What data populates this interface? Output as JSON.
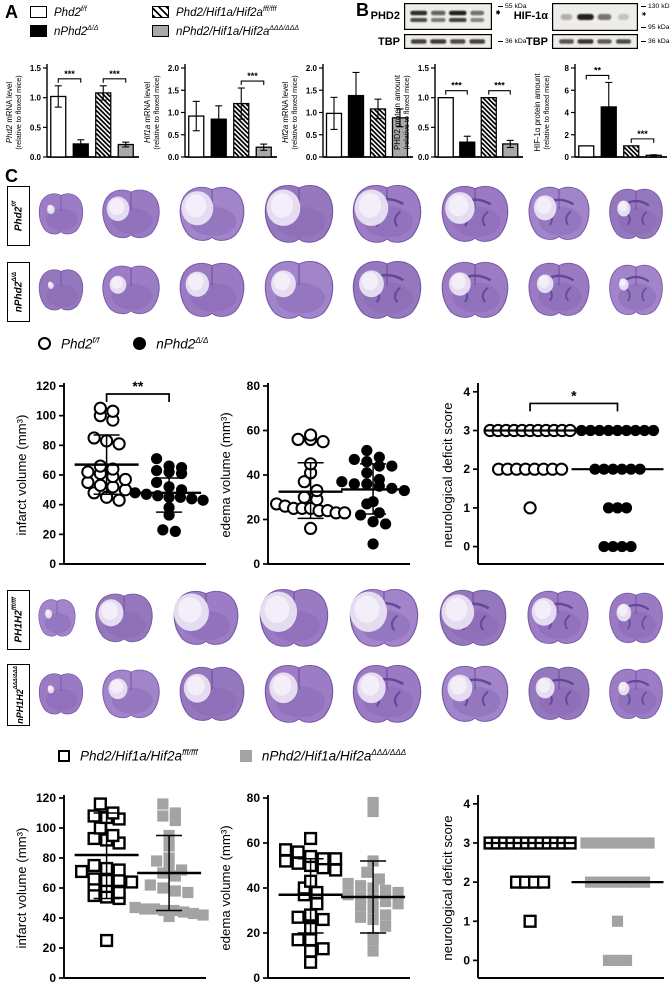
{
  "panels": {
    "a": "A",
    "b": "B",
    "c": "C"
  },
  "panel_a": {
    "legend": [
      {
        "name": "Phd2",
        "sup": "f/f",
        "swatch": "white"
      },
      {
        "name": "nPhd2",
        "sup": "Δ/Δ",
        "swatch": "black"
      },
      {
        "name": "Phd2/Hif1a/Hif2a",
        "sup": "fff/fff",
        "swatch": "hatched"
      },
      {
        "name": "nPhd2/Hif1a/Hif2a",
        "sup": "ΔΔΔ/ΔΔΔ",
        "swatch": "gray"
      }
    ]
  },
  "panel_b": {
    "blots": [
      {
        "protein": "PHD2",
        "markers": [
          "55 kDa"
        ],
        "note": "**",
        "doublet": true,
        "lanes": [
          0.9,
          0.55,
          1.0,
          0.45
        ]
      },
      {
        "protein": "TBP",
        "markers": [
          "36 kDa"
        ],
        "lanes": [
          0.75,
          0.8,
          0.7,
          0.75
        ]
      },
      {
        "protein": "HIF-1α",
        "markers": [
          "130 kDa",
          "95 kDa"
        ],
        "note": "*",
        "lanes": [
          0.18,
          0.95,
          0.5,
          0.08
        ]
      },
      {
        "protein": "TBP",
        "markers": [
          "36 kDa"
        ],
        "lanes": [
          0.65,
          0.85,
          0.6,
          0.7
        ]
      }
    ]
  },
  "panel_c": {
    "brain_rows": [
      {
        "name": "Phd2",
        "sup": "f/f",
        "sections": 8
      },
      {
        "name": "nPhd2",
        "sup": "Δ/Δ",
        "sections": 8
      },
      {
        "name": "PH1H2",
        "sup": "fff/fff",
        "sections": 8
      },
      {
        "name": "nPH1H2",
        "sup": "ΔΔΔ/ΔΔΔ",
        "sections": 8
      }
    ],
    "legend1": [
      {
        "name": "Phd2",
        "sup": "f/f",
        "marker": "circle-open"
      },
      {
        "name": "nPhd2",
        "sup": "Δ/Δ",
        "marker": "circle-filled"
      }
    ],
    "legend2": [
      {
        "name": "Phd2/Hif1a/Hif2a",
        "sup": "fff/fff",
        "marker": "square-open"
      },
      {
        "name": "nPhd2/Hif1a/Hif2a",
        "sup": "ΔΔΔ/ΔΔΔ",
        "marker": "square-gray"
      }
    ]
  },
  "chart_data": [
    {
      "id": "a-phd2-mrna",
      "type": "bar",
      "ylabel_italic": "Phd2",
      "ylabel_rest": " mRNA level",
      "ylabel_line2": "(relative to floxed mice)",
      "ylim": [
        0,
        1.5
      ],
      "yticks": [
        0,
        0.5,
        1.0,
        1.5
      ],
      "tick_decimals": 1,
      "categories": [
        "Phd2 f/f",
        "nPhd2 Δ/Δ",
        "Phd2/Hif1a/Hif2a fff/fff",
        "nPhd2/Hif1a/Hif2a ΔΔΔ/ΔΔΔ"
      ],
      "values": [
        1.02,
        0.22,
        1.08,
        0.21
      ],
      "errors": [
        0.18,
        0.07,
        0.12,
        0.04
      ],
      "significance": [
        {
          "from": 0,
          "to": 1,
          "label": "***"
        },
        {
          "from": 2,
          "to": 3,
          "label": "***"
        }
      ]
    },
    {
      "id": "a-hif1a-mrna",
      "type": "bar",
      "ylabel_italic": "Hif1a",
      "ylabel_rest": " mRNA level",
      "ylabel_line2": "(relative to floxed mice)",
      "ylim": [
        0,
        2.0
      ],
      "yticks": [
        0,
        0.5,
        1.0,
        1.5,
        2.0
      ],
      "tick_decimals": 1,
      "categories": [
        "Phd2 f/f",
        "nPhd2 Δ/Δ",
        "Phd2/Hif1a/Hif2a fff/fff",
        "nPhd2/Hif1a/Hif2a ΔΔΔ/ΔΔΔ"
      ],
      "values": [
        0.92,
        0.85,
        1.2,
        0.22
      ],
      "errors": [
        0.33,
        0.3,
        0.35,
        0.07
      ],
      "significance": [
        {
          "from": 2,
          "to": 3,
          "label": "***"
        }
      ]
    },
    {
      "id": "a-hif2a-mrna",
      "type": "bar",
      "ylabel_italic": "Hif2a",
      "ylabel_rest": " mRNA level",
      "ylabel_line2": "(relative to floxed mice)",
      "ylim": [
        0,
        2.0
      ],
      "yticks": [
        0,
        0.5,
        1.0,
        1.5,
        2.0
      ],
      "tick_decimals": 1,
      "categories": [
        "Phd2 f/f",
        "nPhd2 Δ/Δ",
        "Phd2/Hif1a/Hif2a fff/fff",
        "nPhd2/Hif1a/Hif2a ΔΔΔ/ΔΔΔ"
      ],
      "values": [
        0.98,
        1.38,
        1.08,
        0.88
      ],
      "errors": [
        0.36,
        0.52,
        0.22,
        0.2
      ],
      "significance": []
    },
    {
      "id": "b-phd2-protein",
      "type": "bar",
      "ylabel_italic": "",
      "ylabel_rest": "PHD2 protein amount",
      "ylabel_line2": "(relative to floxed mice)",
      "ylim": [
        0,
        1.5
      ],
      "yticks": [
        0,
        0.5,
        1.0,
        1.5
      ],
      "tick_decimals": 1,
      "categories": [
        "Phd2 f/f",
        "nPhd2 Δ/Δ",
        "Phd2/Hif1a/Hif2a fff/fff",
        "nPhd2/Hif1a/Hif2a ΔΔΔ/ΔΔΔ"
      ],
      "values": [
        1.0,
        0.25,
        1.0,
        0.22
      ],
      "errors": [
        0,
        0.1,
        0,
        0.06
      ],
      "significance": [
        {
          "from": 0,
          "to": 1,
          "label": "***"
        },
        {
          "from": 2,
          "to": 3,
          "label": "***"
        }
      ]
    },
    {
      "id": "b-hif1a-protein",
      "type": "bar",
      "ylabel_italic": "",
      "ylabel_rest": "HIF-1α protein amount",
      "ylabel_line2": "(relative to floxed mice)",
      "ylim": [
        0,
        8
      ],
      "yticks": [
        0,
        2,
        4,
        6,
        8
      ],
      "tick_decimals": 0,
      "categories": [
        "Phd2 f/f",
        "nPhd2 Δ/Δ",
        "Phd2/Hif1a/Hif2a fff/fff",
        "nPhd2/Hif1a/Hif2a ΔΔΔ/ΔΔΔ"
      ],
      "values": [
        1.0,
        4.5,
        1.0,
        0.15
      ],
      "errors": [
        0,
        2.2,
        0,
        0.05
      ],
      "significance": [
        {
          "from": 0,
          "to": 1,
          "label": "**"
        },
        {
          "from": 2,
          "to": 3,
          "label": "***"
        }
      ]
    },
    {
      "id": "c1-infarct",
      "type": "scatter",
      "ylabel": "infarct volume (mm³)",
      "ylim": [
        0,
        120
      ],
      "yticks": [
        0,
        20,
        40,
        60,
        80,
        100,
        120
      ],
      "sig": "**",
      "series": [
        {
          "name": "Phd2 f/f",
          "marker": "circle-open",
          "mean": 67,
          "err_lo": 47,
          "err_hi": 87,
          "values": [
            105,
            103,
            100,
            97,
            85,
            83,
            81,
            66,
            64,
            62,
            61,
            59,
            57,
            55,
            53,
            52,
            50,
            48,
            45,
            43
          ]
        },
        {
          "name": "nPhd2 Δ/Δ",
          "marker": "circle-filled",
          "mean": 48,
          "err_lo": 35,
          "err_hi": 58,
          "values": [
            71,
            66,
            65,
            63,
            62,
            61,
            55,
            52,
            50,
            48,
            47,
            46,
            45,
            45,
            44,
            43,
            38,
            33,
            23,
            22
          ]
        }
      ]
    },
    {
      "id": "c1-edema",
      "type": "scatter",
      "ylabel": "edema volume (mm³)",
      "ylim": [
        0,
        80
      ],
      "yticks": [
        0,
        20,
        40,
        60,
        80
      ],
      "sig": null,
      "series": [
        {
          "name": "Phd2 f/f",
          "marker": "circle-open",
          "mean": 32.5,
          "err_lo": 20.5,
          "err_hi": 45.5,
          "values": [
            58,
            56,
            56,
            55,
            45,
            41,
            37,
            33,
            30,
            29,
            27,
            26,
            25,
            25,
            25,
            24,
            24,
            23,
            23,
            16
          ]
        },
        {
          "name": "nPhd2 Δ/Δ",
          "marker": "circle-filled",
          "mean": 33.5,
          "err_lo": 22.5,
          "err_hi": 45,
          "values": [
            51,
            48,
            47,
            46,
            44,
            44,
            41,
            38,
            37,
            36,
            36,
            35,
            34,
            33,
            28,
            27,
            23,
            22,
            19,
            18,
            9
          ]
        }
      ]
    },
    {
      "id": "c1-neuro",
      "type": "scatter",
      "discrete": true,
      "ylabel": "neurological deficit score",
      "ylim": [
        -0.45,
        4.15
      ],
      "yticks": [
        0,
        1,
        2,
        3,
        4
      ],
      "sig": "*",
      "series": [
        {
          "name": "Phd2 f/f",
          "marker": "circle-open",
          "median": 3,
          "values": [
            3,
            3,
            3,
            3,
            3,
            3,
            3,
            3,
            3,
            3,
            3,
            2,
            2,
            2,
            2,
            2,
            2,
            2,
            2,
            1
          ]
        },
        {
          "name": "nPhd2 Δ/Δ",
          "marker": "circle-filled",
          "median": 2,
          "values": [
            3,
            3,
            3,
            3,
            3,
            3,
            3,
            3,
            3,
            2,
            2,
            2,
            2,
            2,
            2,
            1,
            1,
            1,
            0,
            0,
            0,
            0
          ]
        }
      ]
    },
    {
      "id": "c2-infarct",
      "type": "scatter",
      "ylabel": "infarct volume (mm³)",
      "ylim": [
        0,
        120
      ],
      "yticks": [
        0,
        20,
        40,
        60,
        80,
        100,
        120
      ],
      "sig": null,
      "series": [
        {
          "name": "Phd2/Hif1a/Hif2a fff/fff",
          "marker": "square-open",
          "mean": 82,
          "err_lo": 53,
          "err_hi": 110,
          "values": [
            116,
            110,
            108,
            107,
            106,
            100,
            95,
            93,
            92,
            90,
            75,
            73,
            72,
            71,
            66,
            65,
            65,
            64,
            62,
            61,
            57,
            55,
            54,
            53,
            25
          ]
        },
        {
          "name": "nPhd2/Hif1a/Hif2a ΔΔΔ/ΔΔΔ",
          "marker": "square-gray",
          "mean": 70,
          "err_lo": 45,
          "err_hi": 95,
          "values": [
            116,
            110,
            108,
            105,
            95,
            88,
            80,
            78,
            75,
            72,
            70,
            68,
            62,
            60,
            58,
            57,
            47,
            46,
            46,
            45,
            45,
            44,
            43,
            42,
            41
          ]
        }
      ]
    },
    {
      "id": "c2-edema",
      "type": "scatter",
      "ylabel": "edema volume (mm³)",
      "ylim": [
        0,
        80
      ],
      "yticks": [
        0,
        20,
        40,
        60,
        80
      ],
      "sig": null,
      "series": [
        {
          "name": "Phd2/Hif1a/Hif2a fff/fff",
          "marker": "square-open",
          "mean": 37,
          "err_lo": 20,
          "err_hi": 53,
          "values": [
            62,
            57,
            56,
            54,
            53,
            53,
            52,
            51,
            50,
            49,
            48,
            43,
            40,
            38,
            37,
            33,
            28,
            27,
            27,
            26,
            22,
            17,
            17,
            13,
            12,
            7
          ]
        },
        {
          "name": "nPhd2/Hif1a/Hif2a ΔΔΔ/ΔΔΔ",
          "marker": "square-gray",
          "mean": 36,
          "err_lo": 20,
          "err_hi": 52,
          "values": [
            78,
            74,
            52,
            47,
            44,
            42,
            41,
            40,
            39,
            38,
            37,
            36,
            35,
            34,
            33,
            32,
            31,
            28,
            27,
            26,
            23,
            18,
            17,
            12
          ]
        }
      ]
    },
    {
      "id": "c2-neuro",
      "type": "scatter",
      "discrete": true,
      "ylabel": "neurological deficit score",
      "ylim": [
        -0.45,
        4.15
      ],
      "yticks": [
        0,
        1,
        2,
        3,
        4
      ],
      "sig": null,
      "series": [
        {
          "name": "Phd2/Hif1a/Hif2a fff/fff",
          "marker": "square-open",
          "median": 3,
          "values": [
            3,
            3,
            3,
            3,
            3,
            3,
            3,
            3,
            3,
            3,
            3,
            3,
            2,
            2,
            2,
            2,
            1
          ]
        },
        {
          "name": "nPhd2/Hif1a/Hif2a ΔΔΔ/ΔΔΔ",
          "marker": "square-gray",
          "median": 2,
          "values": [
            3,
            3,
            3,
            3,
            3,
            3,
            3,
            3,
            2,
            2,
            2,
            2,
            2,
            2,
            2,
            1,
            0,
            0,
            0
          ]
        }
      ]
    }
  ]
}
